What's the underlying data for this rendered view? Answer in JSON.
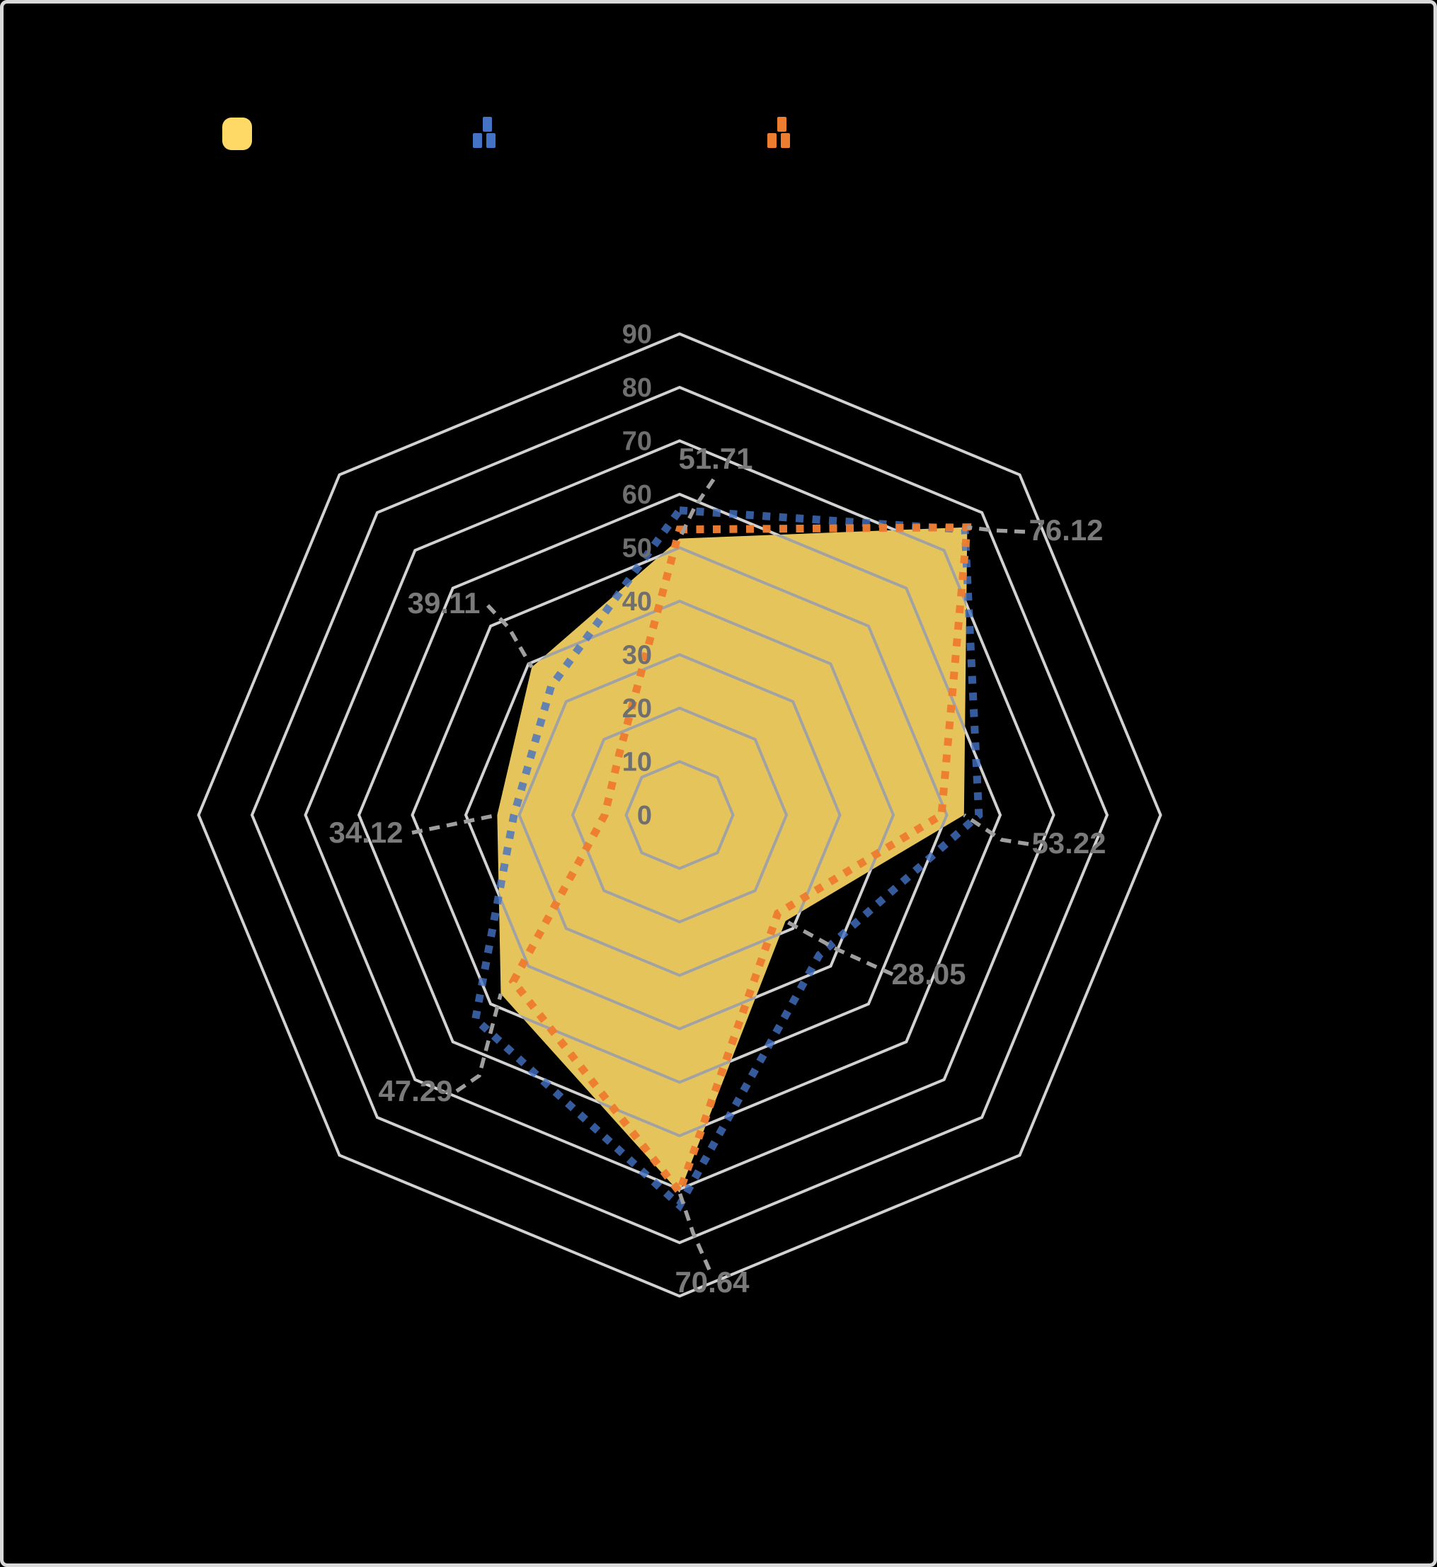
{
  "canvas": {
    "background_color": "#000000",
    "frame_border_color": "#D9D9D9"
  },
  "legend": {
    "text_visible": false,
    "items": [
      {
        "name": "filled-area-series",
        "marker": "filled-rounded-square",
        "color": "#FFD966"
      },
      {
        "name": "blue-dashed-series",
        "marker": "dashed-line-sample",
        "color": "#4472C4"
      },
      {
        "name": "orange-dashed-series",
        "marker": "dashed-line-sample",
        "color": "#ED7D31"
      }
    ]
  },
  "chart_data": {
    "type": "radar",
    "axes_count": 8,
    "axis_order": [
      "top",
      "upper-right",
      "right",
      "lower-right",
      "bottom",
      "lower-left",
      "left",
      "upper-left"
    ],
    "category_labels_visible": false,
    "radial_axis": {
      "min": 0,
      "max": 90,
      "step": 10,
      "tick_labels": [
        "90",
        "80",
        "70",
        "60",
        "50",
        "40",
        "30",
        "20",
        "10",
        "0"
      ],
      "tick_color": "#6F6F6F"
    },
    "grid": {
      "shape": "octagon-rings",
      "color": "#D2D2D2",
      "spokes_visible": false
    },
    "series": [
      {
        "name": "filled-area",
        "style": "filled-area",
        "color": "#FFD966",
        "fill_opacity": 0.9,
        "values": [
          51.71,
          76.12,
          53.22,
          28.05,
          70.64,
          47.29,
          34.12,
          39.11
        ],
        "data_labels": [
          "51.71",
          "76.12",
          "53.22",
          "28.05",
          "70.64",
          "47.29",
          "34.12",
          "39.11"
        ],
        "data_label_color": "#7A7A7A",
        "leader_line_color": "#9F9F9F"
      },
      {
        "name": "blue-dashed-line",
        "style": "square-dash-line",
        "color": "#4472C4",
        "values": [
          57,
          75.5,
          56,
          37,
          73,
          54,
          31,
          34
        ],
        "values_estimated": true
      },
      {
        "name": "orange-dashed-line",
        "style": "square-dash-line",
        "color": "#ED7D31",
        "values": [
          53.4,
          76.1,
          49,
          26,
          70.5,
          44,
          14,
          16
        ],
        "values_estimated": true
      }
    ]
  }
}
